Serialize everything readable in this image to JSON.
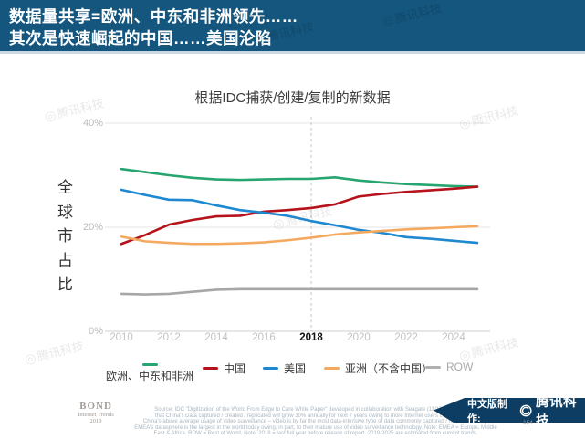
{
  "header": {
    "line1": "数据量共享=欧洲、中东和非洲领先……",
    "line2": "其次是快速崛起的中国……美国沦陷"
  },
  "chart": {
    "title": "根据IDC捕获/创建/复制的新数据",
    "y_axis_label": "全球市占比",
    "y_ticks": [
      {
        "label": "40%",
        "value": 40
      },
      {
        "label": "20%",
        "value": 20
      },
      {
        "label": "0%",
        "value": 0
      }
    ],
    "x_ticks": [
      "2010",
      "2012",
      "2014",
      "2016",
      "2018",
      "2020",
      "2022",
      "2024"
    ],
    "bold_x_tick": "2018",
    "reference_line_year": 2018
  },
  "legend": {
    "items": [
      {
        "label": "欧洲、中东和非洲",
        "color": "#27a571"
      },
      {
        "label": "中国",
        "color": "#b5121b"
      },
      {
        "label": "美国",
        "color": "#1e88d0"
      },
      {
        "label": "亚洲（不含中国）",
        "color": "#f4a95f"
      },
      {
        "label": "ROW",
        "color": "#b0b0b0",
        "gray_text": true
      }
    ]
  },
  "watermark": {
    "glyph": "◎",
    "text": "腾讯科技"
  },
  "footer": {
    "brand": "BOND",
    "brand_sub": "Internet Trends",
    "brand_year": "2019",
    "page_number": "154",
    "credit_prefix": "中文版制作:",
    "credit_brand": "腾讯科技",
    "source_lines": [
      "Source: IDC \"Digitization of the World From Edge to Core White Paper\" developed in collaboration with Seagate (11/18). IDC predicts",
      "that China's Data captured / created / replicated will grow 30% annually for next 7 years owing to more Internet users creating data &",
      "China's above average usage of video surveillance – video is by far the most data-intensive type of data commonly captured / replicated today.",
      "EMEA's datasphere is the largest in the world today owing, in part, to their mature use of video surveillance technology. Note: EMEA = Europe, Middle",
      "East & Africa. ROW = Rest of World. Note: 2018 = last full year before release of report. 2019-2025 are estimated from current trends."
    ]
  },
  "chart_data": {
    "type": "line",
    "title": "根据IDC捕获/创建/复制的新数据",
    "xlabel": "",
    "ylabel": "全球市占比",
    "ylim": [
      0,
      40
    ],
    "y_tick_values": [
      0,
      20,
      40
    ],
    "grid": "horizontal",
    "legend_position": "bottom",
    "annotation": {
      "vertical_dashed_line_at_x": 2018
    },
    "x": [
      2010,
      2011,
      2012,
      2013,
      2014,
      2015,
      2016,
      2017,
      2018,
      2019,
      2020,
      2021,
      2022,
      2023,
      2024,
      2025
    ],
    "series": [
      {
        "name": "欧洲、中东和非洲",
        "color": "#27a571",
        "values": [
          31.2,
          30.6,
          30.0,
          29.5,
          29.2,
          29.1,
          29.2,
          29.3,
          29.3,
          29.6,
          29.0,
          28.6,
          28.3,
          28.1,
          27.9,
          27.8
        ]
      },
      {
        "name": "中国",
        "color": "#b5121b",
        "values": [
          16.8,
          18.5,
          20.5,
          21.4,
          22.1,
          22.2,
          23.0,
          23.3,
          23.7,
          24.4,
          25.9,
          26.4,
          26.8,
          27.1,
          27.4,
          27.8
        ]
      },
      {
        "name": "美国",
        "color": "#1e88d0",
        "values": [
          27.2,
          26.2,
          25.3,
          25.2,
          24.2,
          23.3,
          22.8,
          22.2,
          21.2,
          20.4,
          19.5,
          18.9,
          18.1,
          17.8,
          17.4,
          17.0
        ]
      },
      {
        "name": "亚洲（不含中国）",
        "color": "#f4a95f",
        "values": [
          18.2,
          17.3,
          17.0,
          16.8,
          16.8,
          16.9,
          17.1,
          17.5,
          18.0,
          18.6,
          19.0,
          19.3,
          19.6,
          19.8,
          20.0,
          20.2
        ]
      },
      {
        "name": "ROW",
        "color": "#a7a7a7",
        "values": [
          7.2,
          7.1,
          7.2,
          7.6,
          8.0,
          8.1,
          8.1,
          8.1,
          8.1,
          8.1,
          8.1,
          8.1,
          8.1,
          8.1,
          8.1,
          8.1
        ]
      }
    ]
  }
}
